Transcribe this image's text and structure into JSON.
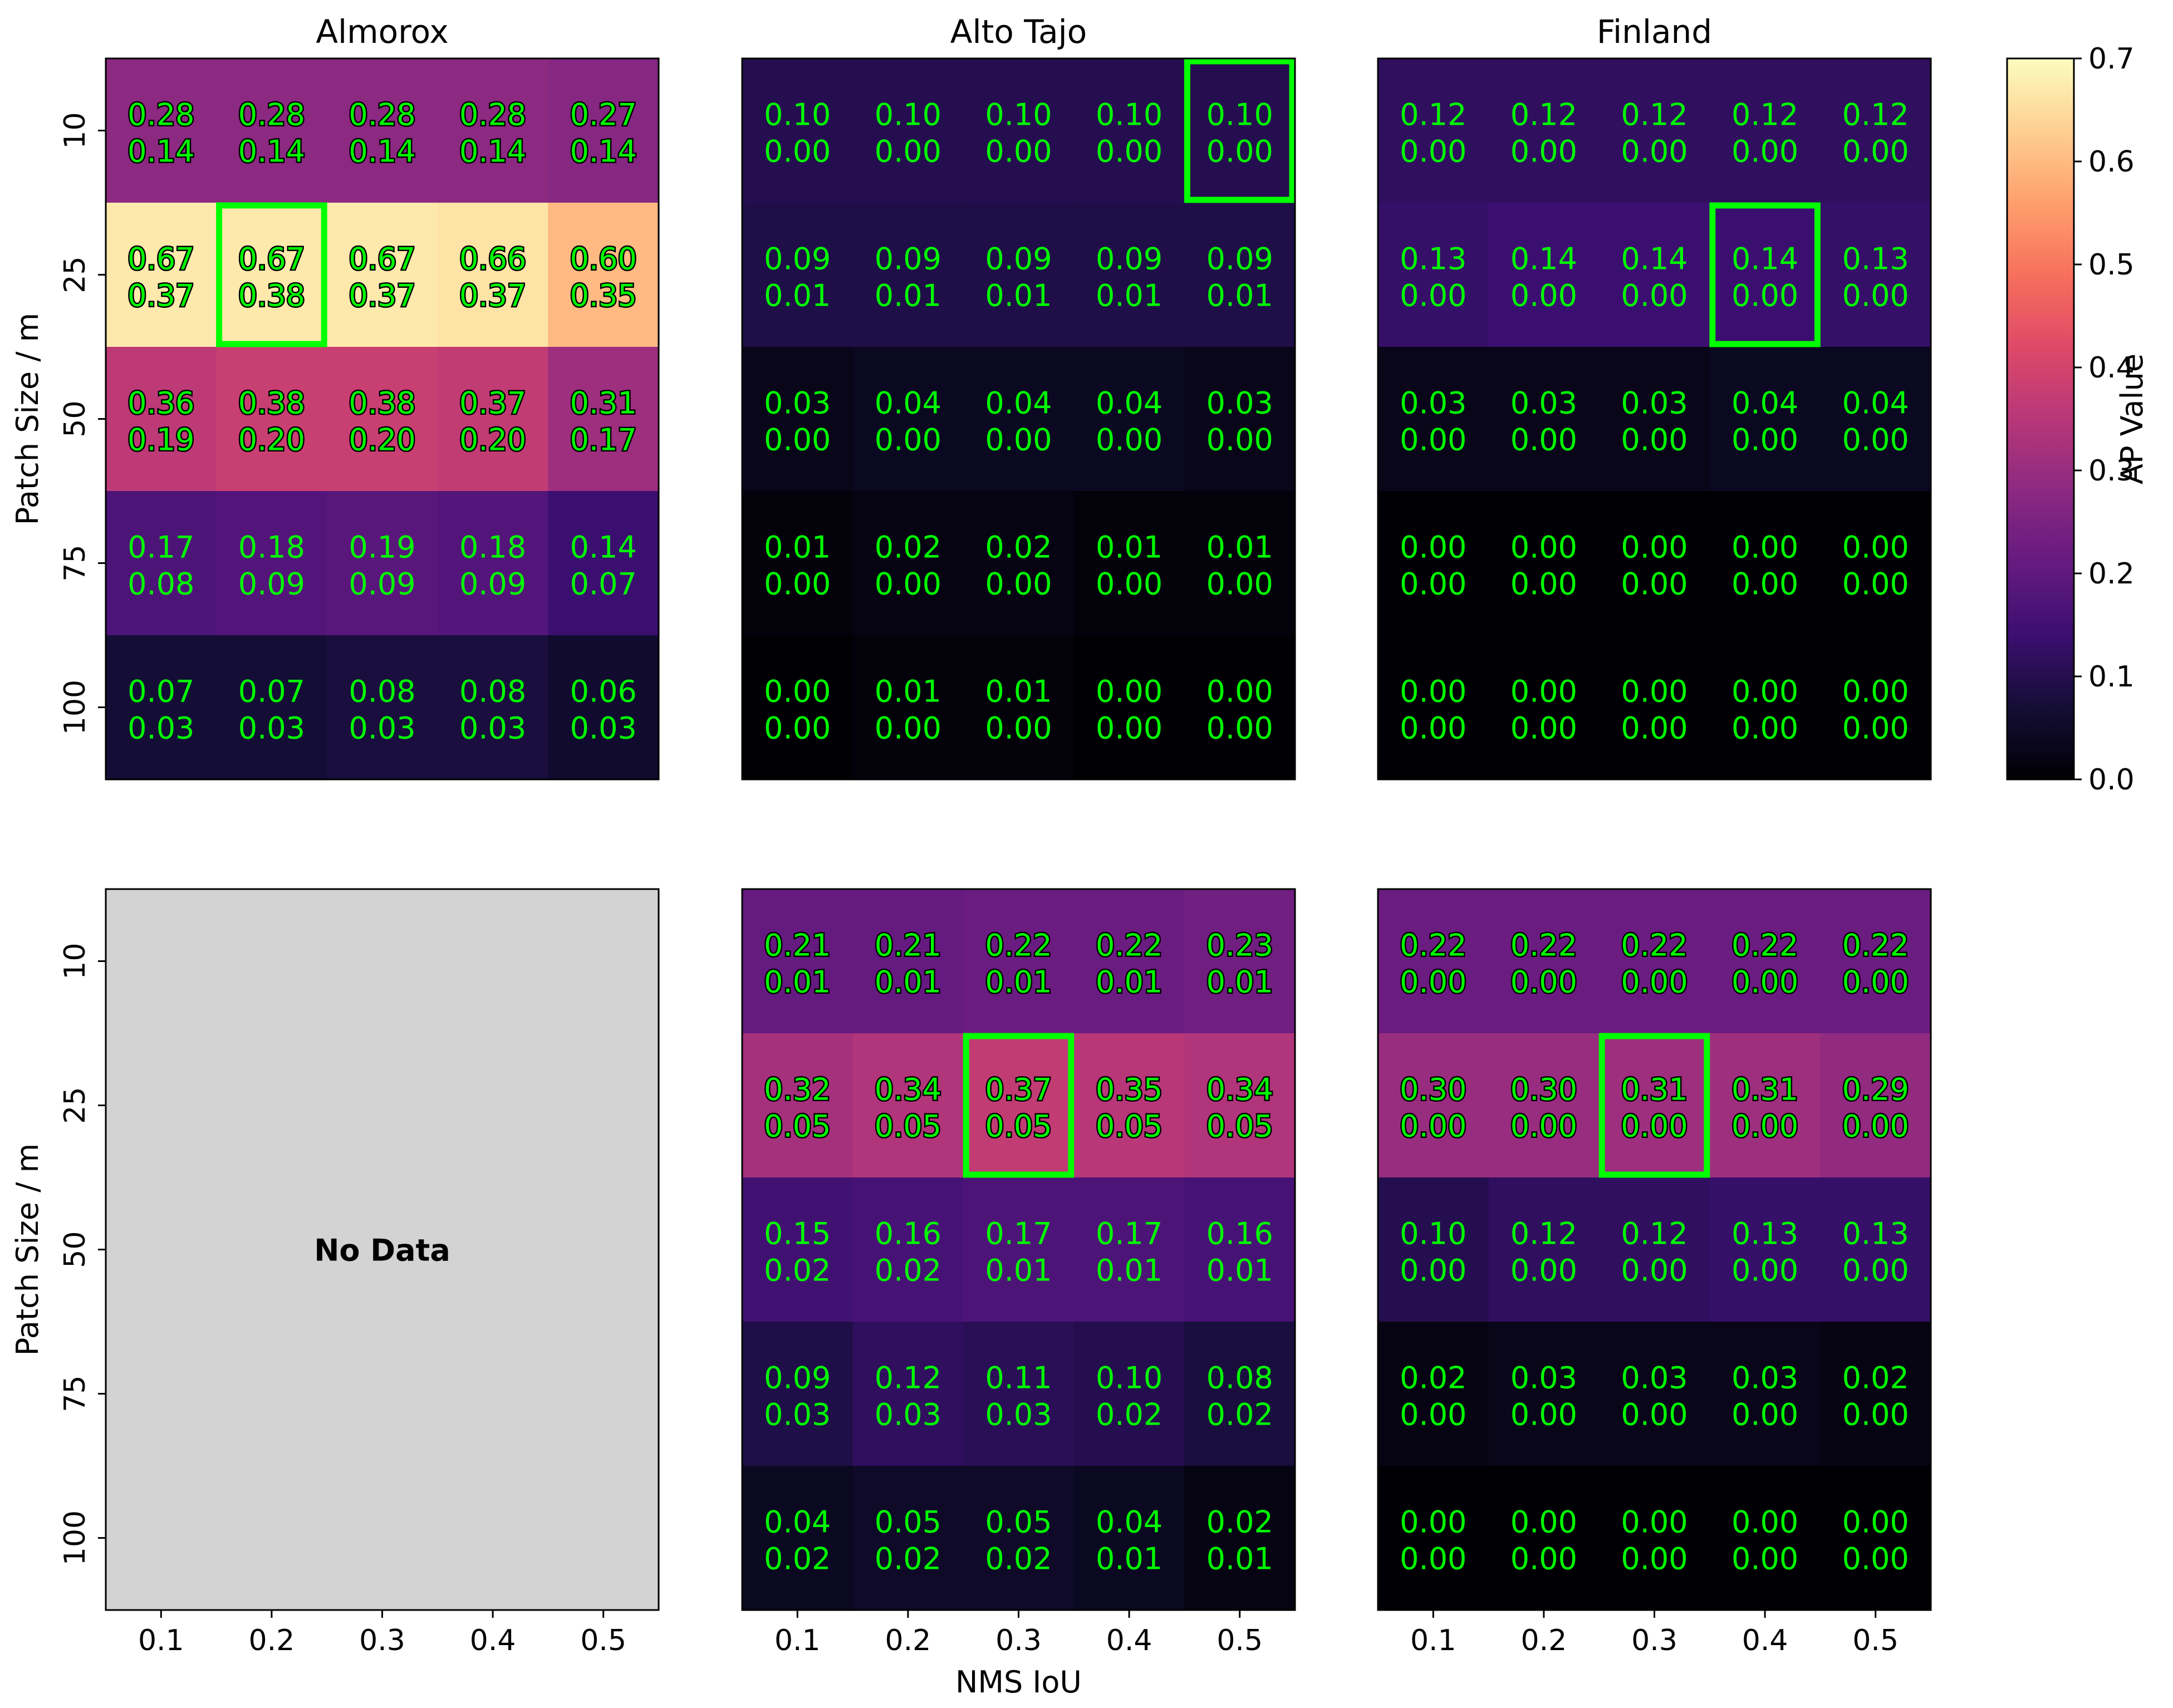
{
  "chart_data": {
    "type": "heatmap",
    "colormap": "magma",
    "cell_text_color": "#00ff00",
    "best_box_color": "#00ff00",
    "no_data_color": "#d3d3d3",
    "x_tick_labels": [
      "0.1",
      "0.2",
      "0.3",
      "0.4",
      "0.5"
    ],
    "y_tick_labels": [
      "10",
      "25",
      "50",
      "75",
      "100"
    ],
    "xlabel": "NMS IoU",
    "ylabel": "Patch Size / m",
    "colorbar": {
      "label": "AP Value",
      "range": [
        0.0,
        0.7
      ],
      "ticks": [
        "0.0",
        "0.1",
        "0.2",
        "0.3",
        "0.4",
        "0.5",
        "0.6",
        "0.7"
      ]
    },
    "no_data_text": "No Data",
    "panels": [
      {
        "title": "Almorox",
        "row": 0,
        "col": 0,
        "ap": [
          [
            0.28,
            0.28,
            0.28,
            0.28,
            0.27
          ],
          [
            0.67,
            0.67,
            0.67,
            0.66,
            0.6
          ],
          [
            0.36,
            0.38,
            0.38,
            0.37,
            0.31
          ],
          [
            0.17,
            0.18,
            0.19,
            0.18,
            0.14
          ],
          [
            0.07,
            0.07,
            0.08,
            0.08,
            0.06
          ]
        ],
        "sub": [
          [
            0.14,
            0.14,
            0.14,
            0.14,
            0.14
          ],
          [
            0.37,
            0.38,
            0.37,
            0.37,
            0.35
          ],
          [
            0.19,
            0.2,
            0.2,
            0.2,
            0.17
          ],
          [
            0.08,
            0.09,
            0.09,
            0.09,
            0.07
          ],
          [
            0.03,
            0.03,
            0.03,
            0.03,
            0.03
          ]
        ],
        "best": [
          1,
          1
        ]
      },
      {
        "title": "Alto Tajo",
        "row": 0,
        "col": 1,
        "ap": [
          [
            0.1,
            0.1,
            0.1,
            0.1,
            0.1
          ],
          [
            0.09,
            0.09,
            0.09,
            0.09,
            0.09
          ],
          [
            0.03,
            0.04,
            0.04,
            0.04,
            0.03
          ],
          [
            0.01,
            0.02,
            0.02,
            0.01,
            0.01
          ],
          [
            0.0,
            0.01,
            0.01,
            0.0,
            0.0
          ]
        ],
        "sub": [
          [
            0.0,
            0.0,
            0.0,
            0.0,
            0.0
          ],
          [
            0.01,
            0.01,
            0.01,
            0.01,
            0.01
          ],
          [
            0.0,
            0.0,
            0.0,
            0.0,
            0.0
          ],
          [
            0.0,
            0.0,
            0.0,
            0.0,
            0.0
          ],
          [
            0.0,
            0.0,
            0.0,
            0.0,
            0.0
          ]
        ],
        "best": [
          0,
          4
        ]
      },
      {
        "title": "Finland",
        "row": 0,
        "col": 2,
        "ap": [
          [
            0.12,
            0.12,
            0.12,
            0.12,
            0.12
          ],
          [
            0.13,
            0.14,
            0.14,
            0.14,
            0.13
          ],
          [
            0.03,
            0.03,
            0.03,
            0.04,
            0.04
          ],
          [
            0.0,
            0.0,
            0.0,
            0.0,
            0.0
          ],
          [
            0.0,
            0.0,
            0.0,
            0.0,
            0.0
          ]
        ],
        "sub": [
          [
            0.0,
            0.0,
            0.0,
            0.0,
            0.0
          ],
          [
            0.0,
            0.0,
            0.0,
            0.0,
            0.0
          ],
          [
            0.0,
            0.0,
            0.0,
            0.0,
            0.0
          ],
          [
            0.0,
            0.0,
            0.0,
            0.0,
            0.0
          ],
          [
            0.0,
            0.0,
            0.0,
            0.0,
            0.0
          ]
        ],
        "best": [
          1,
          3
        ]
      },
      {
        "title": "",
        "row": 1,
        "col": 0,
        "no_data": true
      },
      {
        "title": "",
        "row": 1,
        "col": 1,
        "ap": [
          [
            0.21,
            0.21,
            0.22,
            0.22,
            0.23
          ],
          [
            0.32,
            0.34,
            0.37,
            0.35,
            0.34
          ],
          [
            0.15,
            0.16,
            0.17,
            0.17,
            0.16
          ],
          [
            0.09,
            0.12,
            0.11,
            0.1,
            0.08
          ],
          [
            0.04,
            0.05,
            0.05,
            0.04,
            0.02
          ]
        ],
        "sub": [
          [
            0.01,
            0.01,
            0.01,
            0.01,
            0.01
          ],
          [
            0.05,
            0.05,
            0.05,
            0.05,
            0.05
          ],
          [
            0.02,
            0.02,
            0.01,
            0.01,
            0.01
          ],
          [
            0.03,
            0.03,
            0.03,
            0.02,
            0.02
          ],
          [
            0.02,
            0.02,
            0.02,
            0.01,
            0.01
          ]
        ],
        "best": [
          1,
          2
        ]
      },
      {
        "title": "",
        "row": 1,
        "col": 2,
        "ap": [
          [
            0.22,
            0.22,
            0.22,
            0.22,
            0.22
          ],
          [
            0.3,
            0.3,
            0.31,
            0.31,
            0.29
          ],
          [
            0.1,
            0.12,
            0.12,
            0.13,
            0.13
          ],
          [
            0.02,
            0.03,
            0.03,
            0.03,
            0.02
          ],
          [
            0.0,
            0.0,
            0.0,
            0.0,
            0.0
          ]
        ],
        "sub": [
          [
            0.0,
            0.0,
            0.0,
            0.0,
            0.0
          ],
          [
            0.0,
            0.0,
            0.0,
            0.0,
            0.0
          ],
          [
            0.0,
            0.0,
            0.0,
            0.0,
            0.0
          ],
          [
            0.0,
            0.0,
            0.0,
            0.0,
            0.0
          ],
          [
            0.0,
            0.0,
            0.0,
            0.0,
            0.0
          ]
        ],
        "best": [
          1,
          2
        ]
      }
    ]
  }
}
